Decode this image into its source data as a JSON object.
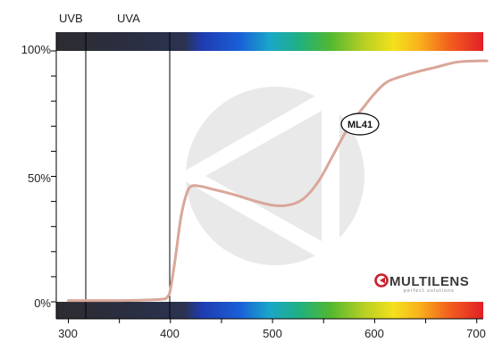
{
  "chart_data": {
    "type": "line",
    "x_ticks": [
      "300",
      "400",
      "500",
      "600",
      "700"
    ],
    "y_ticks": [
      "100%",
      "50%",
      "0%"
    ],
    "xlim": [
      300,
      710
    ],
    "ylim": [
      0,
      100
    ],
    "regions": [
      {
        "label": "UVB",
        "from": 300,
        "to": 320
      },
      {
        "label": "UVA",
        "from": 320,
        "to": 400
      }
    ],
    "series": [
      {
        "name": "ML41",
        "color": "#d9a79a",
        "x": [
          300,
          320,
          350,
          390,
          397,
          400,
          405,
          410,
          415,
          420,
          430,
          440,
          460,
          480,
          500,
          515,
          530,
          545,
          560,
          575,
          590,
          600,
          610,
          620,
          640,
          660,
          680,
          700,
          710
        ],
        "y": [
          0.5,
          0.5,
          0.5,
          1,
          2,
          5,
          18,
          33,
          42,
          46,
          46,
          45,
          43,
          40.5,
          38.5,
          38.5,
          41,
          48,
          59,
          70,
          78,
          83,
          87,
          89,
          91.5,
          93.5,
          95.5,
          96,
          96
        ]
      }
    ]
  },
  "logo": {
    "brand": "MULTILENS",
    "tagline": "perfect solutions"
  },
  "colors": {
    "curve": "#d9a79a",
    "axis": "#000000",
    "watermark": "#e9e9e9"
  }
}
